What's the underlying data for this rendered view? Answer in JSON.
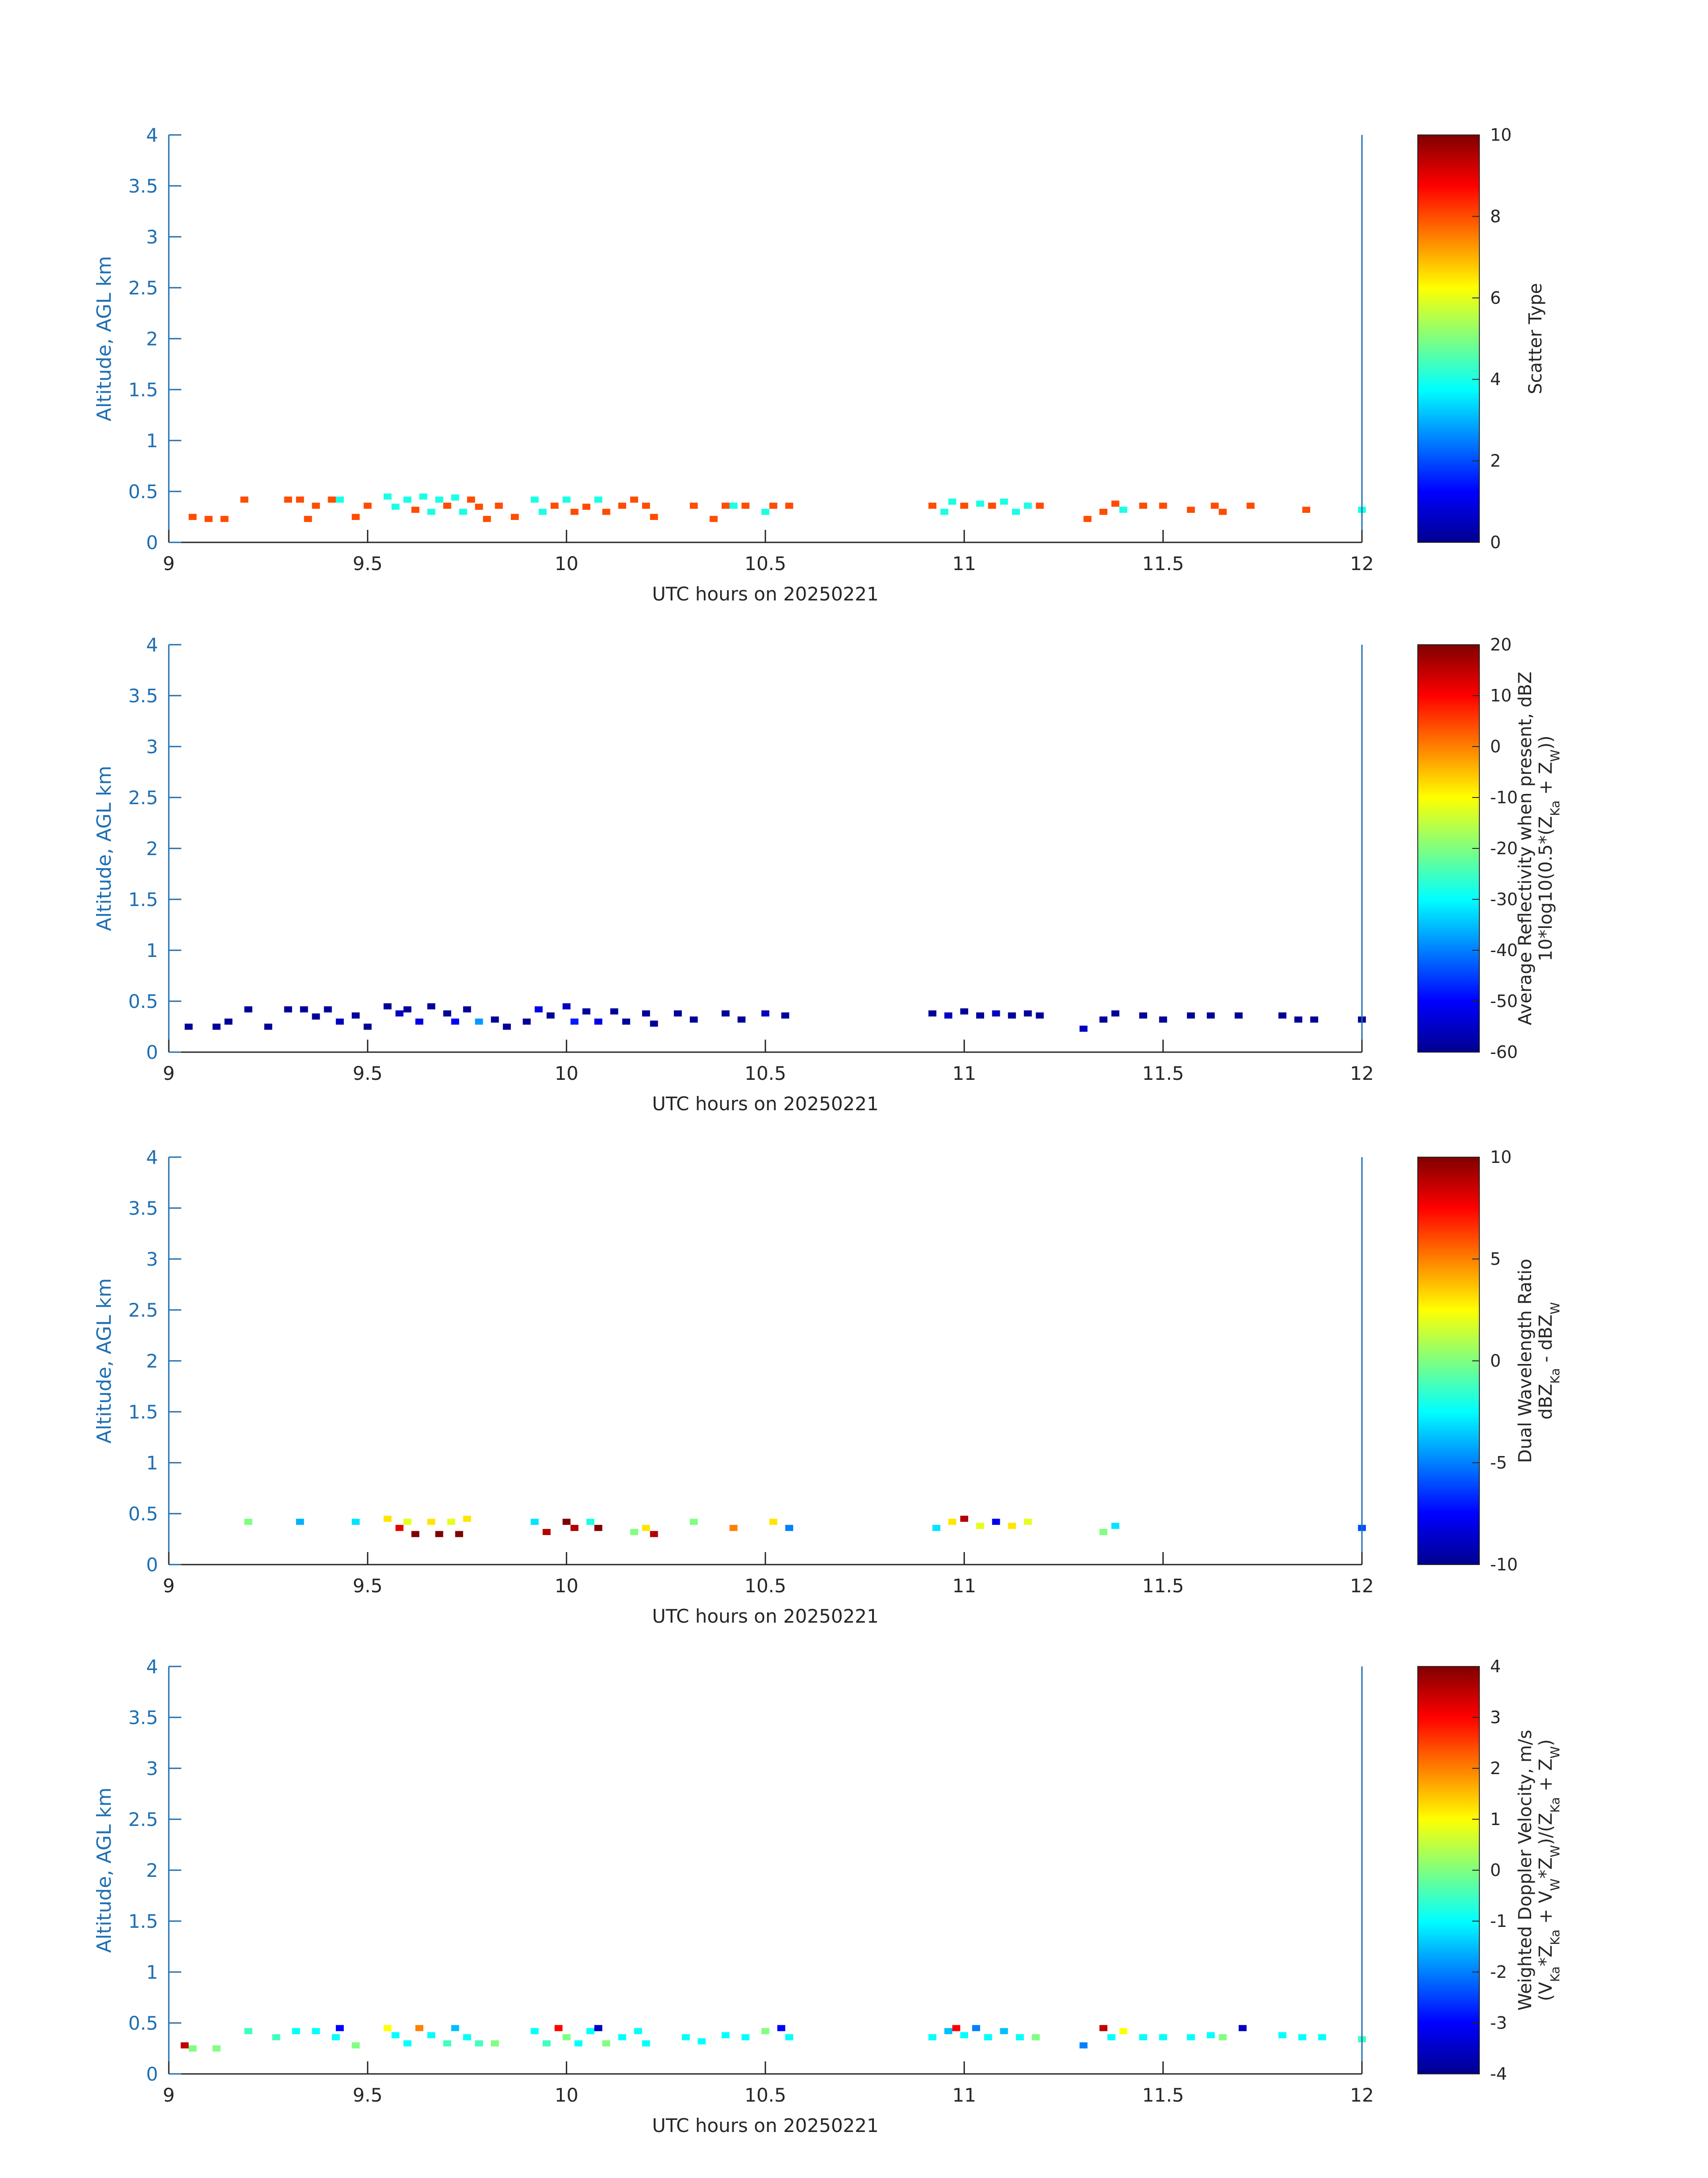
{
  "chart_data": [
    {
      "type": "heatmap",
      "name": "scatter-type",
      "xlabel": "UTC hours on 20250221",
      "ylabel": "Altitude, AGL km",
      "xlim": [
        9,
        12
      ],
      "ylim": [
        0,
        4
      ],
      "xticks": [
        "9",
        "9.5",
        "10",
        "10.5",
        "11",
        "11.5",
        "12"
      ],
      "yticks": [
        "0",
        "0.5",
        "1",
        "1.5",
        "2",
        "2.5",
        "3",
        "3.5",
        "4"
      ],
      "colorbar": {
        "label_lines": [
          [
            "Scatter Type"
          ]
        ],
        "range": [
          0,
          10
        ],
        "ticks": [
          "0",
          "2",
          "4",
          "6",
          "8",
          "10"
        ]
      },
      "grid": false,
      "points": [
        [
          9.06,
          0.25,
          8
        ],
        [
          9.1,
          0.23,
          8
        ],
        [
          9.14,
          0.23,
          8
        ],
        [
          9.19,
          0.42,
          8
        ],
        [
          9.3,
          0.42,
          8
        ],
        [
          9.33,
          0.42,
          8
        ],
        [
          9.35,
          0.23,
          8
        ],
        [
          9.37,
          0.36,
          8
        ],
        [
          9.41,
          0.42,
          8
        ],
        [
          9.43,
          0.42,
          4
        ],
        [
          9.47,
          0.25,
          8
        ],
        [
          9.5,
          0.36,
          8
        ],
        [
          9.55,
          0.45,
          4
        ],
        [
          9.57,
          0.35,
          4
        ],
        [
          9.6,
          0.42,
          4
        ],
        [
          9.62,
          0.32,
          8
        ],
        [
          9.64,
          0.45,
          4
        ],
        [
          9.66,
          0.3,
          4
        ],
        [
          9.68,
          0.42,
          4
        ],
        [
          9.7,
          0.36,
          8
        ],
        [
          9.72,
          0.44,
          4
        ],
        [
          9.74,
          0.3,
          4
        ],
        [
          9.76,
          0.42,
          8
        ],
        [
          9.78,
          0.35,
          8
        ],
        [
          9.8,
          0.23,
          8
        ],
        [
          9.83,
          0.36,
          8
        ],
        [
          9.87,
          0.25,
          8
        ],
        [
          9.92,
          0.42,
          4
        ],
        [
          9.94,
          0.3,
          4
        ],
        [
          9.97,
          0.36,
          8
        ],
        [
          10.0,
          0.42,
          4
        ],
        [
          10.02,
          0.3,
          8
        ],
        [
          10.05,
          0.35,
          8
        ],
        [
          10.08,
          0.42,
          4
        ],
        [
          10.1,
          0.3,
          8
        ],
        [
          10.14,
          0.36,
          8
        ],
        [
          10.17,
          0.42,
          8
        ],
        [
          10.2,
          0.36,
          8
        ],
        [
          10.22,
          0.25,
          8
        ],
        [
          10.32,
          0.36,
          8
        ],
        [
          10.37,
          0.23,
          8
        ],
        [
          10.4,
          0.36,
          8
        ],
        [
          10.42,
          0.36,
          4
        ],
        [
          10.45,
          0.36,
          8
        ],
        [
          10.5,
          0.3,
          4
        ],
        [
          10.52,
          0.36,
          8
        ],
        [
          10.56,
          0.36,
          8
        ],
        [
          10.92,
          0.36,
          8
        ],
        [
          10.95,
          0.3,
          4
        ],
        [
          10.97,
          0.4,
          4
        ],
        [
          11.0,
          0.36,
          8
        ],
        [
          11.04,
          0.38,
          4
        ],
        [
          11.07,
          0.36,
          8
        ],
        [
          11.1,
          0.4,
          4
        ],
        [
          11.13,
          0.3,
          4
        ],
        [
          11.16,
          0.36,
          4
        ],
        [
          11.19,
          0.36,
          8
        ],
        [
          11.31,
          0.23,
          8
        ],
        [
          11.35,
          0.3,
          8
        ],
        [
          11.38,
          0.38,
          8
        ],
        [
          11.4,
          0.32,
          4
        ],
        [
          11.45,
          0.36,
          8
        ],
        [
          11.5,
          0.36,
          8
        ],
        [
          11.57,
          0.32,
          8
        ],
        [
          11.63,
          0.36,
          8
        ],
        [
          11.65,
          0.3,
          8
        ],
        [
          11.72,
          0.36,
          8
        ],
        [
          11.86,
          0.32,
          8
        ],
        [
          12.0,
          0.32,
          4
        ]
      ]
    },
    {
      "type": "heatmap",
      "name": "average-reflectivity",
      "xlabel": "UTC hours on 20250221",
      "ylabel": "Altitude, AGL km",
      "xlim": [
        9,
        12
      ],
      "ylim": [
        0,
        4
      ],
      "xticks": [
        "9",
        "9.5",
        "10",
        "10.5",
        "11",
        "11.5",
        "12"
      ],
      "yticks": [
        "0",
        "0.5",
        "1",
        "1.5",
        "2",
        "2.5",
        "3",
        "3.5",
        "4"
      ],
      "colorbar": {
        "label_lines": [
          [
            "Average Reflectivity when present, dBZ"
          ],
          [
            "10*log10(0.5*(Z",
            {
              "sub": "Ka"
            },
            " + Z",
            {
              "sub": "W"
            },
            "))"
          ]
        ],
        "range": [
          -60,
          20
        ],
        "ticks": [
          "-60",
          "-50",
          "-40",
          "-30",
          "-20",
          "-10",
          "0",
          "10",
          "20"
        ]
      },
      "grid": false,
      "points": [
        [
          9.05,
          0.25,
          -58
        ],
        [
          9.12,
          0.25,
          -58
        ],
        [
          9.15,
          0.3,
          -58
        ],
        [
          9.2,
          0.42,
          -58
        ],
        [
          9.25,
          0.25,
          -58
        ],
        [
          9.3,
          0.42,
          -58
        ],
        [
          9.34,
          0.42,
          -58
        ],
        [
          9.37,
          0.35,
          -58
        ],
        [
          9.4,
          0.42,
          -58
        ],
        [
          9.43,
          0.3,
          -55
        ],
        [
          9.47,
          0.36,
          -58
        ],
        [
          9.5,
          0.25,
          -58
        ],
        [
          9.55,
          0.45,
          -58
        ],
        [
          9.58,
          0.38,
          -55
        ],
        [
          9.6,
          0.42,
          -58
        ],
        [
          9.63,
          0.3,
          -52
        ],
        [
          9.66,
          0.45,
          -58
        ],
        [
          9.7,
          0.38,
          -58
        ],
        [
          9.72,
          0.3,
          -50
        ],
        [
          9.75,
          0.42,
          -58
        ],
        [
          9.78,
          0.3,
          -38
        ],
        [
          9.82,
          0.32,
          -58
        ],
        [
          9.85,
          0.25,
          -58
        ],
        [
          9.9,
          0.3,
          -58
        ],
        [
          9.93,
          0.42,
          -52
        ],
        [
          9.96,
          0.36,
          -58
        ],
        [
          10.0,
          0.45,
          -55
        ],
        [
          10.02,
          0.3,
          -48
        ],
        [
          10.05,
          0.4,
          -58
        ],
        [
          10.08,
          0.3,
          -52
        ],
        [
          10.12,
          0.4,
          -58
        ],
        [
          10.15,
          0.3,
          -58
        ],
        [
          10.2,
          0.38,
          -58
        ],
        [
          10.22,
          0.28,
          -58
        ],
        [
          10.28,
          0.38,
          -58
        ],
        [
          10.32,
          0.32,
          -58
        ],
        [
          10.4,
          0.38,
          -58
        ],
        [
          10.44,
          0.32,
          -58
        ],
        [
          10.5,
          0.38,
          -55
        ],
        [
          10.55,
          0.36,
          -58
        ],
        [
          10.92,
          0.38,
          -58
        ],
        [
          10.96,
          0.36,
          -55
        ],
        [
          11.0,
          0.4,
          -58
        ],
        [
          11.04,
          0.36,
          -58
        ],
        [
          11.08,
          0.38,
          -55
        ],
        [
          11.12,
          0.36,
          -58
        ],
        [
          11.16,
          0.38,
          -58
        ],
        [
          11.19,
          0.36,
          -58
        ],
        [
          11.3,
          0.23,
          -55
        ],
        [
          11.35,
          0.32,
          -58
        ],
        [
          11.38,
          0.38,
          -58
        ],
        [
          11.45,
          0.36,
          -58
        ],
        [
          11.5,
          0.32,
          -58
        ],
        [
          11.57,
          0.36,
          -58
        ],
        [
          11.62,
          0.36,
          -58
        ],
        [
          11.69,
          0.36,
          -58
        ],
        [
          11.8,
          0.36,
          -58
        ],
        [
          11.84,
          0.32,
          -58
        ],
        [
          11.88,
          0.32,
          -58
        ],
        [
          12.0,
          0.32,
          -58
        ]
      ]
    },
    {
      "type": "heatmap",
      "name": "dual-wavelength-ratio",
      "xlabel": "UTC hours on 20250221",
      "ylabel": "Altitude, AGL km",
      "xlim": [
        9,
        12
      ],
      "ylim": [
        0,
        4
      ],
      "xticks": [
        "9",
        "9.5",
        "10",
        "10.5",
        "11",
        "11.5",
        "12"
      ],
      "yticks": [
        "0",
        "0.5",
        "1",
        "1.5",
        "2",
        "2.5",
        "3",
        "3.5",
        "4"
      ],
      "colorbar": {
        "label_lines": [
          [
            "Dual Wavelength Ratio"
          ],
          [
            "dBZ",
            {
              "sub": "Ka"
            },
            " - dBZ",
            {
              "sub": "W"
            }
          ]
        ],
        "range": [
          -10,
          10
        ],
        "ticks": [
          "-10",
          "-5",
          "0",
          "5",
          "10"
        ]
      },
      "grid": false,
      "points": [
        [
          9.2,
          0.42,
          0
        ],
        [
          9.33,
          0.42,
          -4
        ],
        [
          9.47,
          0.42,
          -3
        ],
        [
          9.55,
          0.45,
          3
        ],
        [
          9.58,
          0.36,
          8
        ],
        [
          9.6,
          0.42,
          2
        ],
        [
          9.62,
          0.3,
          10
        ],
        [
          9.66,
          0.42,
          3
        ],
        [
          9.68,
          0.3,
          10
        ],
        [
          9.71,
          0.42,
          2
        ],
        [
          9.73,
          0.3,
          10
        ],
        [
          9.75,
          0.45,
          3
        ],
        [
          9.92,
          0.42,
          -3
        ],
        [
          9.95,
          0.32,
          9
        ],
        [
          10.0,
          0.42,
          10
        ],
        [
          10.02,
          0.36,
          9
        ],
        [
          10.06,
          0.42,
          -2
        ],
        [
          10.08,
          0.36,
          10
        ],
        [
          10.17,
          0.32,
          0
        ],
        [
          10.2,
          0.36,
          3
        ],
        [
          10.22,
          0.3,
          9
        ],
        [
          10.32,
          0.42,
          0
        ],
        [
          10.42,
          0.36,
          5
        ],
        [
          10.52,
          0.42,
          3
        ],
        [
          10.56,
          0.36,
          -5
        ],
        [
          10.93,
          0.36,
          -3
        ],
        [
          10.97,
          0.42,
          3
        ],
        [
          11.0,
          0.45,
          9
        ],
        [
          11.04,
          0.38,
          2
        ],
        [
          11.08,
          0.42,
          -8
        ],
        [
          11.12,
          0.38,
          3
        ],
        [
          11.16,
          0.42,
          2
        ],
        [
          11.35,
          0.32,
          0
        ],
        [
          11.38,
          0.38,
          -3
        ],
        [
          12.0,
          0.36,
          -6
        ]
      ]
    },
    {
      "type": "heatmap",
      "name": "weighted-doppler-velocity",
      "xlabel": "UTC hours on 20250221",
      "ylabel": "Altitude, AGL km",
      "xlim": [
        9,
        12
      ],
      "ylim": [
        0,
        4
      ],
      "xticks": [
        "9",
        "9.5",
        "10",
        "10.5",
        "11",
        "11.5",
        "12"
      ],
      "yticks": [
        "0",
        "0.5",
        "1",
        "1.5",
        "2",
        "2.5",
        "3",
        "3.5",
        "4"
      ],
      "colorbar": {
        "label_lines": [
          [
            "Weighted Doppler Velocity, m/s"
          ],
          [
            "(V",
            {
              "sub": "Ka"
            },
            "*Z",
            {
              "sub": "Ka"
            },
            " + V",
            {
              "sub": "W"
            },
            "*Z",
            {
              "sub": "W"
            },
            ")/(Z",
            {
              "sub": "Ka"
            },
            " + Z",
            {
              "sub": "W"
            },
            ")"
          ]
        ],
        "range": [
          -4,
          4
        ],
        "ticks": [
          "-4",
          "-3",
          "-2",
          "-1",
          "0",
          "1",
          "2",
          "3",
          "4"
        ]
      },
      "grid": false,
      "points": [
        [
          9.04,
          0.28,
          3.5
        ],
        [
          9.06,
          0.25,
          0
        ],
        [
          9.12,
          0.25,
          0
        ],
        [
          9.2,
          0.42,
          -0.5
        ],
        [
          9.27,
          0.36,
          -0.5
        ],
        [
          9.32,
          0.42,
          -1
        ],
        [
          9.37,
          0.42,
          -1
        ],
        [
          9.42,
          0.36,
          -1
        ],
        [
          9.43,
          0.45,
          -3
        ],
        [
          9.47,
          0.28,
          0
        ],
        [
          9.55,
          0.45,
          1
        ],
        [
          9.57,
          0.38,
          -1
        ],
        [
          9.6,
          0.3,
          -1
        ],
        [
          9.63,
          0.45,
          2
        ],
        [
          9.66,
          0.38,
          -1
        ],
        [
          9.7,
          0.3,
          -0.5
        ],
        [
          9.72,
          0.45,
          -1.5
        ],
        [
          9.75,
          0.36,
          -1
        ],
        [
          9.78,
          0.3,
          -0.5
        ],
        [
          9.82,
          0.3,
          0
        ],
        [
          9.92,
          0.42,
          -1
        ],
        [
          9.95,
          0.3,
          -0.5
        ],
        [
          9.98,
          0.45,
          3
        ],
        [
          10.0,
          0.36,
          0
        ],
        [
          10.03,
          0.3,
          -1
        ],
        [
          10.06,
          0.42,
          -1
        ],
        [
          10.08,
          0.45,
          -3.5
        ],
        [
          10.1,
          0.3,
          0
        ],
        [
          10.14,
          0.36,
          -1
        ],
        [
          10.18,
          0.42,
          -1
        ],
        [
          10.2,
          0.3,
          -1
        ],
        [
          10.3,
          0.36,
          -1
        ],
        [
          10.34,
          0.32,
          -1
        ],
        [
          10.4,
          0.38,
          -1
        ],
        [
          10.45,
          0.36,
          -1
        ],
        [
          10.5,
          0.42,
          0
        ],
        [
          10.54,
          0.45,
          -3
        ],
        [
          10.56,
          0.36,
          -1
        ],
        [
          10.92,
          0.36,
          -1
        ],
        [
          10.96,
          0.42,
          -1.5
        ],
        [
          10.98,
          0.45,
          3
        ],
        [
          11.0,
          0.38,
          -1
        ],
        [
          11.03,
          0.45,
          -2
        ],
        [
          11.06,
          0.36,
          -1
        ],
        [
          11.1,
          0.42,
          -1.5
        ],
        [
          11.14,
          0.36,
          -1
        ],
        [
          11.18,
          0.36,
          0
        ],
        [
          11.3,
          0.28,
          -2
        ],
        [
          11.35,
          0.45,
          3.5
        ],
        [
          11.37,
          0.36,
          -1
        ],
        [
          11.4,
          0.42,
          1
        ],
        [
          11.45,
          0.36,
          -1
        ],
        [
          11.5,
          0.36,
          -1
        ],
        [
          11.57,
          0.36,
          -1
        ],
        [
          11.62,
          0.38,
          -1
        ],
        [
          11.65,
          0.36,
          0
        ],
        [
          11.7,
          0.45,
          -3.5
        ],
        [
          11.8,
          0.38,
          -1
        ],
        [
          11.85,
          0.36,
          -1
        ],
        [
          11.9,
          0.36,
          -1
        ],
        [
          12.0,
          0.34,
          -0.5
        ]
      ]
    }
  ]
}
